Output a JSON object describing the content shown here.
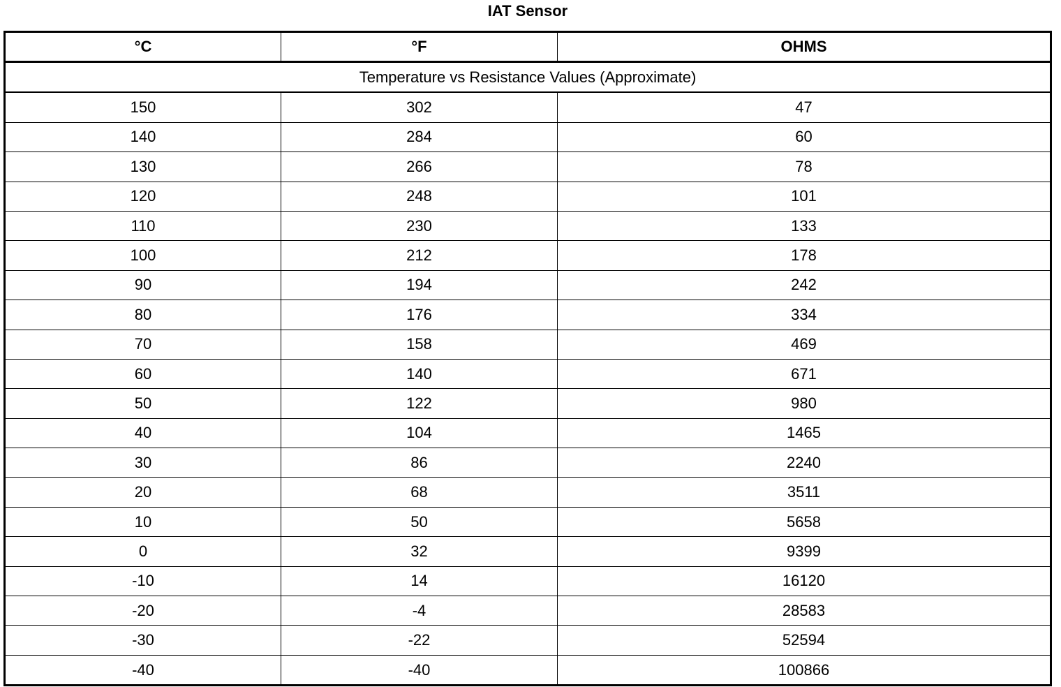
{
  "title": "IAT Sensor",
  "headers": [
    "°C",
    "°F",
    "OHMS"
  ],
  "subtitle": "Temperature vs Resistance Values (Approximate)",
  "rows": [
    [
      "150",
      "302",
      "47"
    ],
    [
      "140",
      "284",
      "60"
    ],
    [
      "130",
      "266",
      "78"
    ],
    [
      "120",
      "248",
      "101"
    ],
    [
      "110",
      "230",
      "133"
    ],
    [
      "100",
      "212",
      "178"
    ],
    [
      "90",
      "194",
      "242"
    ],
    [
      "80",
      "176",
      "334"
    ],
    [
      "70",
      "158",
      "469"
    ],
    [
      "60",
      "140",
      "671"
    ],
    [
      "50",
      "122",
      "980"
    ],
    [
      "40",
      "104",
      "1465"
    ],
    [
      "30",
      "86",
      "2240"
    ],
    [
      "20",
      "68",
      "3511"
    ],
    [
      "10",
      "50",
      "5658"
    ],
    [
      "0",
      "32",
      "9399"
    ],
    [
      "-10",
      "14",
      "16120"
    ],
    [
      "-20",
      "-4",
      "28583"
    ],
    [
      "-30",
      "-22",
      "52594"
    ],
    [
      "-40",
      "-40",
      "100866"
    ]
  ]
}
